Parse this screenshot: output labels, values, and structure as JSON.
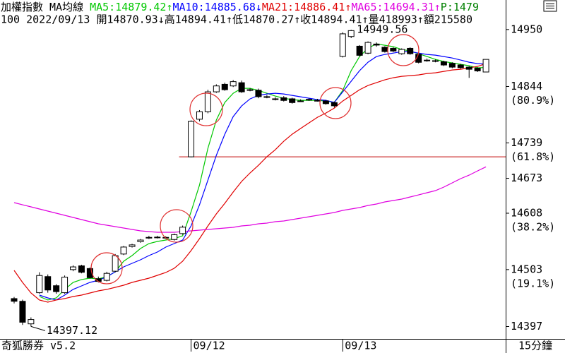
{
  "chart_data": {
    "type": "candlestick",
    "title": "加權指數",
    "subtitle": "MA均線",
    "status": {
      "text": "P:1479",
      "color": "#008000"
    },
    "quote_line": "100 2022/09/13 開14870.93↓高14894.41↑低14870.27↑收14894.41↑量418993↑額215580",
    "footer_left": "奇狐勝券 v5.2",
    "period": "15分鐘",
    "categories": [
      null,
      null,
      null,
      null,
      null,
      null,
      null,
      null,
      null,
      null,
      null,
      null,
      null,
      null,
      null,
      null,
      null,
      null,
      null,
      null,
      null,
      "09/12",
      null,
      null,
      null,
      null,
      null,
      null,
      null,
      null,
      null,
      null,
      null,
      null,
      null,
      null,
      null,
      null,
      null,
      "09/13",
      null,
      null,
      null,
      null,
      null,
      null,
      null,
      null,
      null,
      null,
      null,
      null,
      null,
      null,
      null,
      null,
      null
    ],
    "open": [
      14449,
      14444,
      14402,
      14460,
      14490,
      14473,
      14460,
      14503,
      14510,
      14505,
      14486,
      14483,
      14500,
      14532,
      14546,
      14555,
      14563,
      14563,
      14563,
      14559,
      14570,
      14713,
      14783,
      14797,
      14834,
      14848,
      14845,
      14851,
      14838,
      14837,
      14825,
      14821,
      14823,
      14821,
      14817,
      14820,
      14818,
      14817,
      14814,
      14900,
      14937,
      14919,
      14906,
      14923,
      14917,
      14915,
      14905,
      14915,
      14904,
      14893,
      14892,
      14890,
      14887,
      14884,
      14880,
      14878,
      14870.93
    ],
    "high": [
      14452,
      14447,
      14414,
      14498,
      14494,
      14476,
      14492,
      14511,
      14512,
      14507,
      14490,
      14499,
      14532,
      14547,
      14551,
      14560,
      14566,
      14566,
      14565,
      14570,
      14585,
      14781,
      14800,
      14838,
      14848,
      14851,
      14856,
      14855,
      14841,
      14840,
      14828,
      14824,
      14826,
      14823,
      14820,
      14822,
      14821,
      14819,
      14816,
      14945,
      14949.56,
      14921,
      14928,
      14926,
      14919,
      14917,
      14915,
      14917,
      14906,
      14896,
      14894,
      14892,
      14889,
      14886,
      14882,
      14880,
      14894.41
    ],
    "low": [
      14440,
      14400,
      14397.12,
      14458,
      14460,
      14458,
      14458,
      14500,
      14496,
      14486,
      14479,
      14481,
      14498,
      14530,
      14544,
      14553,
      14560,
      14561,
      14560,
      14557,
      14568,
      14712,
      14779,
      14794,
      14832,
      14836,
      14843,
      14832,
      14835,
      14822,
      14822,
      14818,
      14816,
      14812,
      14815,
      14817,
      14816,
      14810,
      14805,
      14898,
      14934,
      14900,
      14904,
      14918,
      14907,
      14908,
      14903,
      14903,
      14887,
      14890,
      14889,
      14882,
      14878,
      14877,
      14860,
      14871,
      14870.27
    ],
    "close": [
      14444,
      14405,
      14410,
      14492,
      14465,
      14462,
      14489,
      14508,
      14498,
      14488,
      14481,
      14496,
      14529,
      14545,
      14549,
      14558,
      14563,
      14563.5,
      14563,
      14568,
      14582,
      14779,
      14797,
      14834,
      14845,
      14838,
      14853,
      14834,
      14838,
      14825,
      14825,
      14821,
      14818,
      14814,
      14817,
      14820,
      14818,
      14812,
      14808,
      14942,
      14948,
      14902,
      14926,
      14921,
      14909,
      14910,
      14913,
      14905,
      14889,
      14893,
      14892,
      14884,
      14880,
      14879,
      14876,
      14873,
      14894.41
    ],
    "candle_up_color": "#ffffff",
    "candle_down_color": "#000000",
    "series": [
      {
        "name": "MA5:14879.42↑",
        "color": "#00c800",
        "values": [
          null,
          null,
          null,
          14452.9,
          14446.4,
          14450.3,
          14466.1,
          14479.2,
          14484.5,
          14487.1,
          14485.8,
          14489.7,
          14498.9,
          14518.6,
          14529.1,
          14542.3,
          14551.5,
          14555.4,
          14558.0,
          14560.7,
          14565.9,
          14610.6,
          14660.5,
          14728.9,
          14781.4,
          14814.3,
          14831.4,
          14840.6,
          14840.6,
          14836.6,
          14831.4,
          14826.1,
          14822.2,
          14819.5,
          14818.2,
          14818.2,
          14818.2,
          14816.9,
          14814.3,
          14836.6,
          14873.4,
          14899.7,
          14915.4,
          14923.3,
          14920.7,
          14918.1,
          14912.8,
          14910.2,
          14904.9,
          14899.7,
          14894.4,
          14890.5,
          14887.9,
          14885.2,
          14882.6,
          14878.7,
          14879.42
        ]
      },
      {
        "name": "MA10:14885.68↓",
        "color": "#0000ff",
        "values": [
          null,
          null,
          null,
          14455.5,
          14450.3,
          14446.4,
          14455.5,
          14466.1,
          14472.6,
          14479.2,
          14483.1,
          14489.7,
          14498.9,
          14508.1,
          14514.7,
          14521.2,
          14529.1,
          14535.7,
          14544.9,
          14551.5,
          14558.0,
          14584.3,
          14623.7,
          14669.7,
          14715.7,
          14755.1,
          14788.0,
          14807.7,
          14820.8,
          14827.4,
          14830.0,
          14831.4,
          14830.0,
          14827.4,
          14824.8,
          14822.2,
          14819.5,
          14818.2,
          14814.3,
          14834.0,
          14853.7,
          14873.4,
          14889.2,
          14899.7,
          14903.6,
          14906.2,
          14908.9,
          14908.9,
          14906.2,
          14903.6,
          14902.3,
          14899.7,
          14897.0,
          14893.1,
          14889.2,
          14886.5,
          14885.68
        ]
      },
      {
        "name": "MA21:14886.41↑",
        "color": "#e00000",
        "values": [
          14501.5,
          14479.2,
          14459.5,
          14446.4,
          14442.4,
          14446.4,
          14449.0,
          14452.9,
          14455.5,
          14459.5,
          14463.4,
          14466.1,
          14470.0,
          14473.9,
          14479.2,
          14483.1,
          14487.1,
          14492.3,
          14497.6,
          14505.5,
          14518.6,
          14538.3,
          14560.7,
          14584.3,
          14606.7,
          14626.4,
          14647.4,
          14667.1,
          14682.9,
          14697.3,
          14713.1,
          14726.2,
          14742.0,
          14755.1,
          14765.7,
          14776.2,
          14786.7,
          14794.6,
          14803.8,
          14816.9,
          14827.4,
          14837.9,
          14845.8,
          14851.1,
          14856.3,
          14860.3,
          14862.9,
          14864.2,
          14865.5,
          14868.1,
          14869.5,
          14872.1,
          14874.7,
          14876.0,
          14878.7,
          14881.3,
          14886.41
        ]
      },
      {
        "name": "MA65:14694.31↑",
        "color": "#e000e0",
        "values": [
          14627.7,
          14623.7,
          14619.8,
          14615.9,
          14611.9,
          14608.0,
          14604.0,
          14600.1,
          14596.1,
          14592.2,
          14588.3,
          14585.6,
          14583.0,
          14580.4,
          14577.7,
          14575.1,
          14573.8,
          14572.5,
          14572.5,
          14572.5,
          14573.8,
          14575.1,
          14576.4,
          14577.7,
          14579.1,
          14580.4,
          14581.7,
          14584.3,
          14585.6,
          14588.3,
          14589.6,
          14592.2,
          14593.5,
          14596.1,
          14598.8,
          14601.4,
          14604.0,
          14606.7,
          14609.3,
          14613.2,
          14615.9,
          14618.5,
          14622.4,
          14625.1,
          14629.0,
          14631.6,
          14634.3,
          14638.2,
          14642.1,
          14646.1,
          14650.0,
          14656.6,
          14664.5,
          14672.4,
          14678.9,
          14686.8,
          14694.31
        ]
      }
    ],
    "extremes": {
      "high": 14949.56,
      "low": 14397.12
    },
    "ref_line": {
      "value": 14713,
      "color": "#c00000"
    },
    "ylim": [
      14374,
      15005
    ],
    "yticks": [
      14950,
      14844,
      14739,
      14673,
      14608,
      14503,
      14397
    ],
    "level_labels": [
      {
        "value": 14844,
        "label": "(80.9%)"
      },
      {
        "value": 14739,
        "label": "(61.8%)"
      },
      {
        "value": 14608,
        "label": "(38.2%)"
      },
      {
        "value": 14503,
        "label": "(19.1%)"
      }
    ]
  }
}
